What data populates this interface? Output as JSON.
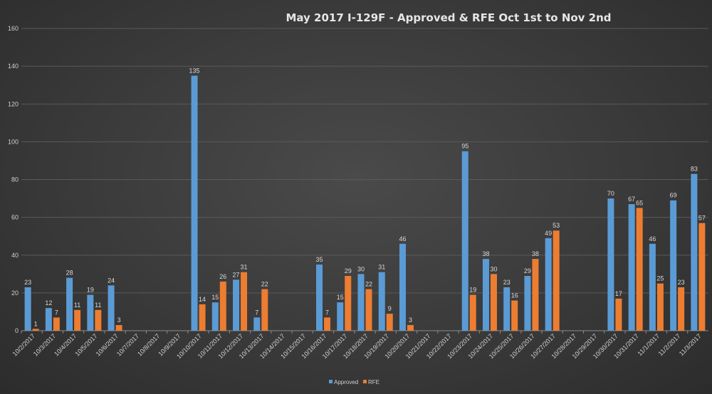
{
  "chart_data": {
    "type": "bar",
    "title": "May 2017 I-129F - Approved  & RFE Oct 1st to Nov 2nd",
    "xlabel": "",
    "ylabel": "",
    "ylim": [
      0,
      160
    ],
    "yticks": [
      0,
      20,
      40,
      60,
      80,
      100,
      120,
      140,
      160
    ],
    "grid": true,
    "legend": "bottom",
    "categories": [
      "10/2/2017",
      "10/3/2017",
      "10/4/2017",
      "10/5/2017",
      "10/6/2017",
      "10/7/2017",
      "10/8/2017",
      "10/9/2017",
      "10/10/2017",
      "10/11/2017",
      "10/12/2017",
      "10/13/2017",
      "10/14/2017",
      "10/15/2017",
      "10/16/2017",
      "10/17/2017",
      "10/18/2017",
      "10/19/2017",
      "10/20/2017",
      "10/21/2017",
      "10/22/2017",
      "10/23/2017",
      "10/24/2017",
      "10/25/2017",
      "10/26/2017",
      "10/27/2017",
      "10/28/2017",
      "10/29/2017",
      "10/30/2017",
      "10/31/2017",
      "11/1/2017",
      "11/2/2017",
      "11/3/2017"
    ],
    "series": [
      {
        "name": "Approved",
        "color": "#5b9bd5",
        "values": [
          23,
          12,
          28,
          19,
          24,
          null,
          null,
          null,
          135,
          15,
          27,
          7,
          null,
          null,
          35,
          15,
          30,
          31,
          46,
          null,
          null,
          95,
          38,
          23,
          29,
          49,
          null,
          null,
          70,
          67,
          46,
          69,
          83
        ]
      },
      {
        "name": "RFE",
        "color": "#ed7d31",
        "values": [
          1,
          7,
          11,
          11,
          3,
          null,
          null,
          null,
          14,
          26,
          31,
          22,
          null,
          null,
          7,
          29,
          22,
          9,
          3,
          null,
          null,
          19,
          30,
          16,
          38,
          53,
          null,
          null,
          17,
          65,
          25,
          23,
          57
        ]
      }
    ]
  }
}
